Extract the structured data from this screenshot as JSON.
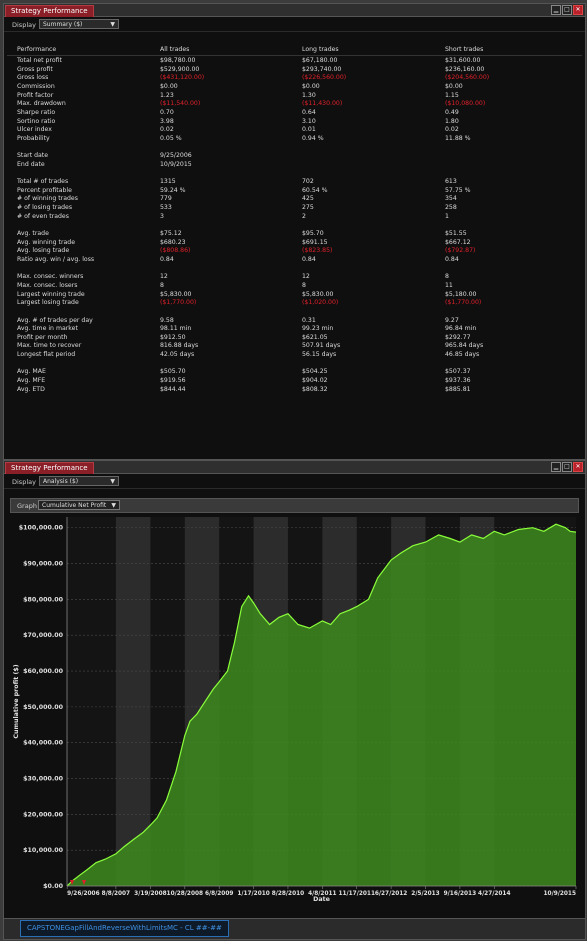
{
  "window1": {
    "title": "Strategy Performance",
    "display_label": "Display",
    "display_value": "Summary ($)",
    "columns": [
      "Performance",
      "All trades",
      "Long trades",
      "Short trades"
    ],
    "rows": [
      {
        "label": "Total net profit",
        "all": "$98,780.00",
        "long": "$67,180.00",
        "short": "$31,600.00"
      },
      {
        "label": "Gross profit",
        "all": "$529,900.00",
        "long": "$293,740.00",
        "short": "$236,160.00"
      },
      {
        "label": "Gross loss",
        "all": "($431,120.00)",
        "long": "($226,560.00)",
        "short": "($204,560.00)",
        "neg": true
      },
      {
        "label": "Commission",
        "all": "$0.00",
        "long": "$0.00",
        "short": "$0.00"
      },
      {
        "label": "Profit factor",
        "all": "1.23",
        "long": "1.30",
        "short": "1.15"
      },
      {
        "label": "Max. drawdown",
        "all": "($11,540.00)",
        "long": "($11,430.00)",
        "short": "($10,080.00)",
        "neg": true
      },
      {
        "label": "Sharpe ratio",
        "all": "0.70",
        "long": "0.64",
        "short": "0.49"
      },
      {
        "label": "Sortino ratio",
        "all": "3.98",
        "long": "3.10",
        "short": "1.80"
      },
      {
        "label": "Ulcer index",
        "all": "0.02",
        "long": "0.01",
        "short": "0.02"
      },
      {
        "label": "Probability",
        "all": "0.05 %",
        "long": "0.94 %",
        "short": "11.88 %"
      },
      {
        "spacer": true
      },
      {
        "label": "Start date",
        "all": "9/25/2006",
        "long": "",
        "short": ""
      },
      {
        "label": "End date",
        "all": "10/9/2015",
        "long": "",
        "short": ""
      },
      {
        "spacer": true
      },
      {
        "label": "Total # of trades",
        "all": "1315",
        "long": "702",
        "short": "613"
      },
      {
        "label": "Percent profitable",
        "all": "59.24 %",
        "long": "60.54 %",
        "short": "57.75 %"
      },
      {
        "label": "# of winning trades",
        "all": "779",
        "long": "425",
        "short": "354"
      },
      {
        "label": "# of losing trades",
        "all": "533",
        "long": "275",
        "short": "258"
      },
      {
        "label": "# of even trades",
        "all": "3",
        "long": "2",
        "short": "1"
      },
      {
        "spacer": true
      },
      {
        "label": "Avg. trade",
        "all": "$75.12",
        "long": "$95.70",
        "short": "$51.55"
      },
      {
        "label": "Avg. winning trade",
        "all": "$680.23",
        "long": "$691.15",
        "short": "$667.12"
      },
      {
        "label": "Avg. losing trade",
        "all": "($808.86)",
        "long": "($823.85)",
        "short": "($792.87)",
        "neg": true
      },
      {
        "label": "Ratio avg. win / avg. loss",
        "all": "0.84",
        "long": "0.84",
        "short": "0.84"
      },
      {
        "spacer": true
      },
      {
        "label": "Max. consec. winners",
        "all": "12",
        "long": "12",
        "short": "8"
      },
      {
        "label": "Max. consec. losers",
        "all": "8",
        "long": "8",
        "short": "11"
      },
      {
        "label": "Largest winning trade",
        "all": "$5,830.00",
        "long": "$5,830.00",
        "short": "$5,180.00"
      },
      {
        "label": "Largest losing trade",
        "all": "($1,770.00)",
        "long": "($1,020.00)",
        "short": "($1,770.00)",
        "neg": true
      },
      {
        "spacer": true
      },
      {
        "label": "Avg. # of trades per day",
        "all": "9.58",
        "long": "0.31",
        "short": "9.27"
      },
      {
        "label": "Avg. time in market",
        "all": "98.11 min",
        "long": "99.23 min",
        "short": "96.84 min"
      },
      {
        "label": "Profit per month",
        "all": "$912.50",
        "long": "$621.05",
        "short": "$292.77"
      },
      {
        "label": "Max. time to recover",
        "all": "816.88 days",
        "long": "507.91 days",
        "short": "965.84 days"
      },
      {
        "label": "Longest flat period",
        "all": "42.05 days",
        "long": "56.15 days",
        "short": "46.85 days"
      },
      {
        "spacer": true
      },
      {
        "label": "Avg. MAE",
        "all": "$505.70",
        "long": "$504.25",
        "short": "$507.37"
      },
      {
        "label": "Avg. MFE",
        "all": "$919.56",
        "long": "$904.02",
        "short": "$937.36"
      },
      {
        "label": "Avg. ETD",
        "all": "$844.44",
        "long": "$808.32",
        "short": "$885.81"
      }
    ]
  },
  "window2": {
    "title": "Strategy Performance",
    "display_label": "Display",
    "display_value": "Analysis ($)",
    "graph_label": "Graph",
    "graph_value": "Cumulative Net Profit"
  },
  "status_tab": "CAPSTONEGapFillAndReverseWithLimitsMC - CL ##-##",
  "colors": {
    "accent_tab": "#8a1f28",
    "negative": "#e0202a",
    "area_fill": "#3e8a1f",
    "line": "#8aff3a"
  },
  "chart_data": {
    "type": "area",
    "xlabel": "Date",
    "ylabel": "Cumulative profit ($)",
    "x_ticks": [
      "9/26/2006",
      "8/8/2007",
      "3/19/2008",
      "10/28/2008",
      "6/8/2009",
      "1/17/2010",
      "8/28/2010",
      "4/8/2011",
      "11/17/2011",
      "6/27/2012",
      "2/5/2013",
      "9/16/2013",
      "4/27/2014",
      "10/9/2015"
    ],
    "y_ticks": [
      "$0.00",
      "$10,000.00",
      "$20,000.00",
      "$30,000.00",
      "$40,000.00",
      "$50,000.00",
      "$60,000.00",
      "$70,000.00",
      "$80,000.00",
      "$90,000.00",
      "$100,000.00"
    ],
    "ylim": [
      0,
      103000
    ],
    "xlim": [
      "9/25/2006",
      "10/9/2015"
    ],
    "series": [
      {
        "values": [
          [
            "2006-09-25",
            0
          ],
          [
            "2006-11-01",
            1500
          ],
          [
            "2006-12-15",
            3000
          ],
          [
            "2007-02-01",
            4500
          ],
          [
            "2007-04-01",
            6500
          ],
          [
            "2007-06-01",
            7500
          ],
          [
            "2007-08-08",
            9000
          ],
          [
            "2007-10-01",
            11000
          ],
          [
            "2007-12-01",
            13000
          ],
          [
            "2008-02-01",
            15000
          ],
          [
            "2008-03-19",
            17000
          ],
          [
            "2008-05-01",
            19000
          ],
          [
            "2008-07-01",
            24000
          ],
          [
            "2008-09-01",
            32000
          ],
          [
            "2008-10-28",
            42000
          ],
          [
            "2008-12-01",
            46000
          ],
          [
            "2009-01-15",
            48000
          ],
          [
            "2009-03-01",
            51000
          ],
          [
            "2009-05-01",
            55000
          ],
          [
            "2009-06-08",
            57000
          ],
          [
            "2009-08-01",
            60000
          ],
          [
            "2009-09-15",
            68000
          ],
          [
            "2009-11-01",
            78000
          ],
          [
            "2009-12-15",
            81000
          ],
          [
            "2010-01-17",
            79000
          ],
          [
            "2010-03-01",
            76000
          ],
          [
            "2010-05-01",
            73000
          ],
          [
            "2010-07-01",
            75000
          ],
          [
            "2010-08-28",
            76000
          ],
          [
            "2010-11-01",
            73000
          ],
          [
            "2011-01-15",
            72000
          ],
          [
            "2011-04-08",
            74000
          ],
          [
            "2011-06-01",
            73000
          ],
          [
            "2011-08-01",
            76000
          ],
          [
            "2011-10-01",
            77000
          ],
          [
            "2011-11-17",
            78000
          ],
          [
            "2012-02-01",
            80000
          ],
          [
            "2012-04-01",
            86000
          ],
          [
            "2012-06-27",
            91000
          ],
          [
            "2012-09-01",
            93000
          ],
          [
            "2012-11-15",
            95000
          ],
          [
            "2013-02-05",
            96000
          ],
          [
            "2013-05-01",
            98000
          ],
          [
            "2013-07-15",
            97000
          ],
          [
            "2013-09-16",
            96000
          ],
          [
            "2013-12-01",
            98000
          ],
          [
            "2014-02-15",
            97000
          ],
          [
            "2014-04-27",
            99000
          ],
          [
            "2014-07-01",
            98000
          ],
          [
            "2014-10-01",
            99500
          ],
          [
            "2015-01-01",
            100000
          ],
          [
            "2015-03-15",
            99000
          ],
          [
            "2015-06-01",
            101000
          ],
          [
            "2015-08-01",
            100000
          ],
          [
            "2015-09-01",
            99000
          ],
          [
            "2015-10-09",
            98780
          ]
        ]
      }
    ],
    "grid": true,
    "legend": "none"
  }
}
